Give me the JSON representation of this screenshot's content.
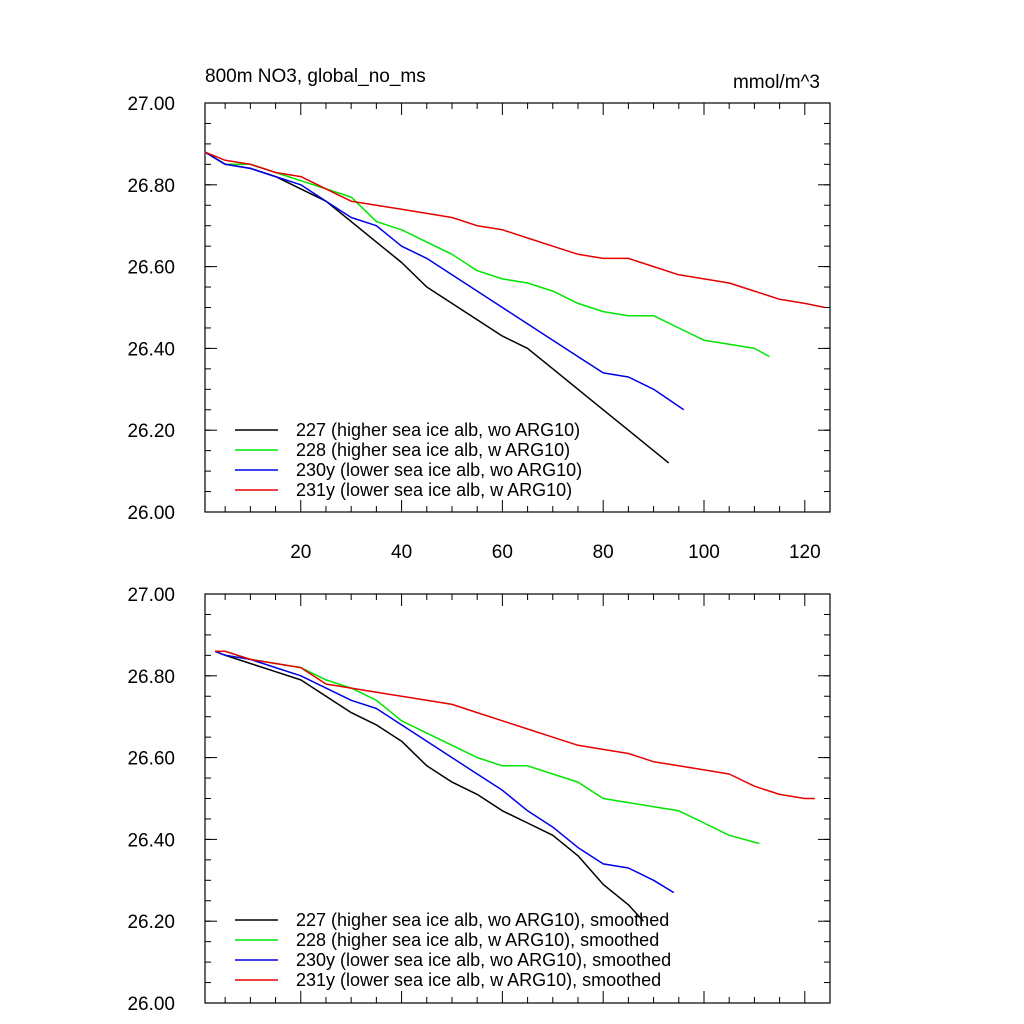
{
  "figure": {
    "background": "#ffffff"
  },
  "chart_data": [
    {
      "type": "line",
      "title_left": "800m NO3, global_no_ms",
      "title_right": "mmol/m^3",
      "xlabel": "",
      "ylabel": "",
      "xlim": [
        1,
        125
      ],
      "ylim": [
        26.0,
        27.0
      ],
      "x_ticks": [
        20,
        40,
        60,
        80,
        100,
        120
      ],
      "x_tick_labels_shown": true,
      "y_ticks": [
        26.0,
        26.2,
        26.4,
        26.6,
        26.8,
        27.0
      ],
      "y_tick_labels": [
        "26.00",
        "26.20",
        "26.40",
        "26.60",
        "26.80",
        "27.00"
      ],
      "grid": false,
      "legend_position": "bottom-left",
      "series": [
        {
          "name": "227 (higher sea ice alb, wo ARG10)",
          "color": "#000000",
          "x": [
            1,
            5,
            10,
            15,
            20,
            25,
            30,
            35,
            40,
            45,
            50,
            55,
            60,
            65,
            70,
            75,
            80,
            85,
            90,
            93
          ],
          "y": [
            26.88,
            26.85,
            26.84,
            26.82,
            26.79,
            26.76,
            26.71,
            26.66,
            26.61,
            26.55,
            26.51,
            26.47,
            26.43,
            26.4,
            26.35,
            26.3,
            26.25,
            26.2,
            26.15,
            26.12
          ]
        },
        {
          "name": "228 (higher sea ice alb, w ARG10)",
          "color": "#00e600",
          "x": [
            1,
            5,
            10,
            15,
            20,
            25,
            30,
            35,
            40,
            45,
            50,
            55,
            60,
            65,
            70,
            75,
            80,
            85,
            90,
            95,
            100,
            105,
            110,
            113
          ],
          "y": [
            26.88,
            26.85,
            26.85,
            26.83,
            26.81,
            26.79,
            26.77,
            26.71,
            26.69,
            26.66,
            26.63,
            26.59,
            26.57,
            26.56,
            26.54,
            26.51,
            26.49,
            26.48,
            26.48,
            26.45,
            26.42,
            26.41,
            26.4,
            26.38
          ]
        },
        {
          "name": "230y (lower sea ice alb, wo ARG10)",
          "color": "#0000e6",
          "x": [
            1,
            5,
            10,
            15,
            20,
            25,
            30,
            35,
            40,
            45,
            50,
            55,
            60,
            65,
            70,
            75,
            80,
            85,
            90,
            96
          ],
          "y": [
            26.88,
            26.85,
            26.84,
            26.82,
            26.8,
            26.76,
            26.72,
            26.7,
            26.65,
            26.62,
            26.58,
            26.54,
            26.5,
            26.46,
            26.42,
            26.38,
            26.34,
            26.33,
            26.3,
            26.25
          ]
        },
        {
          "name": "231y (lower sea ice alb, w ARG10)",
          "color": "#e60000",
          "x": [
            1,
            5,
            10,
            15,
            20,
            25,
            30,
            35,
            40,
            45,
            50,
            55,
            60,
            65,
            70,
            75,
            80,
            85,
            90,
            95,
            100,
            105,
            110,
            115,
            120,
            124
          ],
          "y": [
            26.88,
            26.86,
            26.85,
            26.83,
            26.82,
            26.79,
            26.76,
            26.75,
            26.74,
            26.73,
            26.72,
            26.7,
            26.69,
            26.67,
            26.65,
            26.63,
            26.62,
            26.62,
            26.6,
            26.58,
            26.57,
            26.56,
            26.54,
            26.52,
            26.51,
            26.5
          ]
        }
      ]
    },
    {
      "type": "line",
      "title_left": "",
      "title_right": "",
      "xlabel": "",
      "ylabel": "",
      "xlim": [
        1,
        125
      ],
      "ylim": [
        26.0,
        27.0
      ],
      "x_ticks": [
        20,
        40,
        60,
        80,
        100,
        120
      ],
      "x_tick_labels_shown": false,
      "y_ticks": [
        26.0,
        26.2,
        26.4,
        26.6,
        26.8,
        27.0
      ],
      "y_tick_labels": [
        "26.00",
        "26.20",
        "26.40",
        "26.60",
        "26.80",
        "27.00"
      ],
      "grid": false,
      "legend_position": "bottom-left",
      "series": [
        {
          "name": "227 (higher sea ice alb, wo ARG10), smoothed",
          "color": "#000000",
          "x": [
            3,
            5,
            10,
            15,
            20,
            25,
            30,
            35,
            40,
            45,
            50,
            55,
            60,
            65,
            70,
            75,
            80,
            85,
            88
          ],
          "y": [
            26.86,
            26.85,
            26.83,
            26.81,
            26.79,
            26.75,
            26.71,
            26.68,
            26.64,
            26.58,
            26.54,
            26.51,
            26.47,
            26.44,
            26.41,
            26.36,
            26.29,
            26.24,
            26.2
          ]
        },
        {
          "name": "228 (higher sea ice alb, w ARG10), smoothed",
          "color": "#00e600",
          "x": [
            3,
            5,
            10,
            15,
            20,
            25,
            30,
            35,
            40,
            45,
            50,
            55,
            60,
            65,
            70,
            75,
            80,
            85,
            90,
            95,
            100,
            105,
            111
          ],
          "y": [
            26.86,
            26.86,
            26.84,
            26.83,
            26.82,
            26.79,
            26.77,
            26.74,
            26.69,
            26.66,
            26.63,
            26.6,
            26.58,
            26.58,
            26.56,
            26.54,
            26.5,
            26.49,
            26.48,
            26.47,
            26.44,
            26.41,
            26.39
          ]
        },
        {
          "name": "230y (lower sea ice alb, wo ARG10), smoothed",
          "color": "#0000e6",
          "x": [
            3,
            5,
            10,
            15,
            20,
            25,
            30,
            35,
            40,
            45,
            50,
            55,
            60,
            65,
            70,
            75,
            80,
            85,
            90,
            94
          ],
          "y": [
            26.86,
            26.85,
            26.84,
            26.82,
            26.8,
            26.77,
            26.74,
            26.72,
            26.68,
            26.64,
            26.6,
            26.56,
            26.52,
            26.47,
            26.43,
            26.38,
            26.34,
            26.33,
            26.3,
            26.27
          ]
        },
        {
          "name": "231y (lower sea ice alb, w ARG10), smoothed",
          "color": "#e60000",
          "x": [
            3,
            5,
            10,
            15,
            20,
            25,
            30,
            35,
            40,
            45,
            50,
            55,
            60,
            65,
            70,
            75,
            80,
            85,
            90,
            95,
            100,
            105,
            110,
            115,
            120,
            122
          ],
          "y": [
            26.86,
            26.86,
            26.84,
            26.83,
            26.82,
            26.78,
            26.77,
            26.76,
            26.75,
            26.74,
            26.73,
            26.71,
            26.69,
            26.67,
            26.65,
            26.63,
            26.62,
            26.61,
            26.59,
            26.58,
            26.57,
            26.56,
            26.53,
            26.51,
            26.5,
            26.5
          ]
        }
      ]
    }
  ]
}
